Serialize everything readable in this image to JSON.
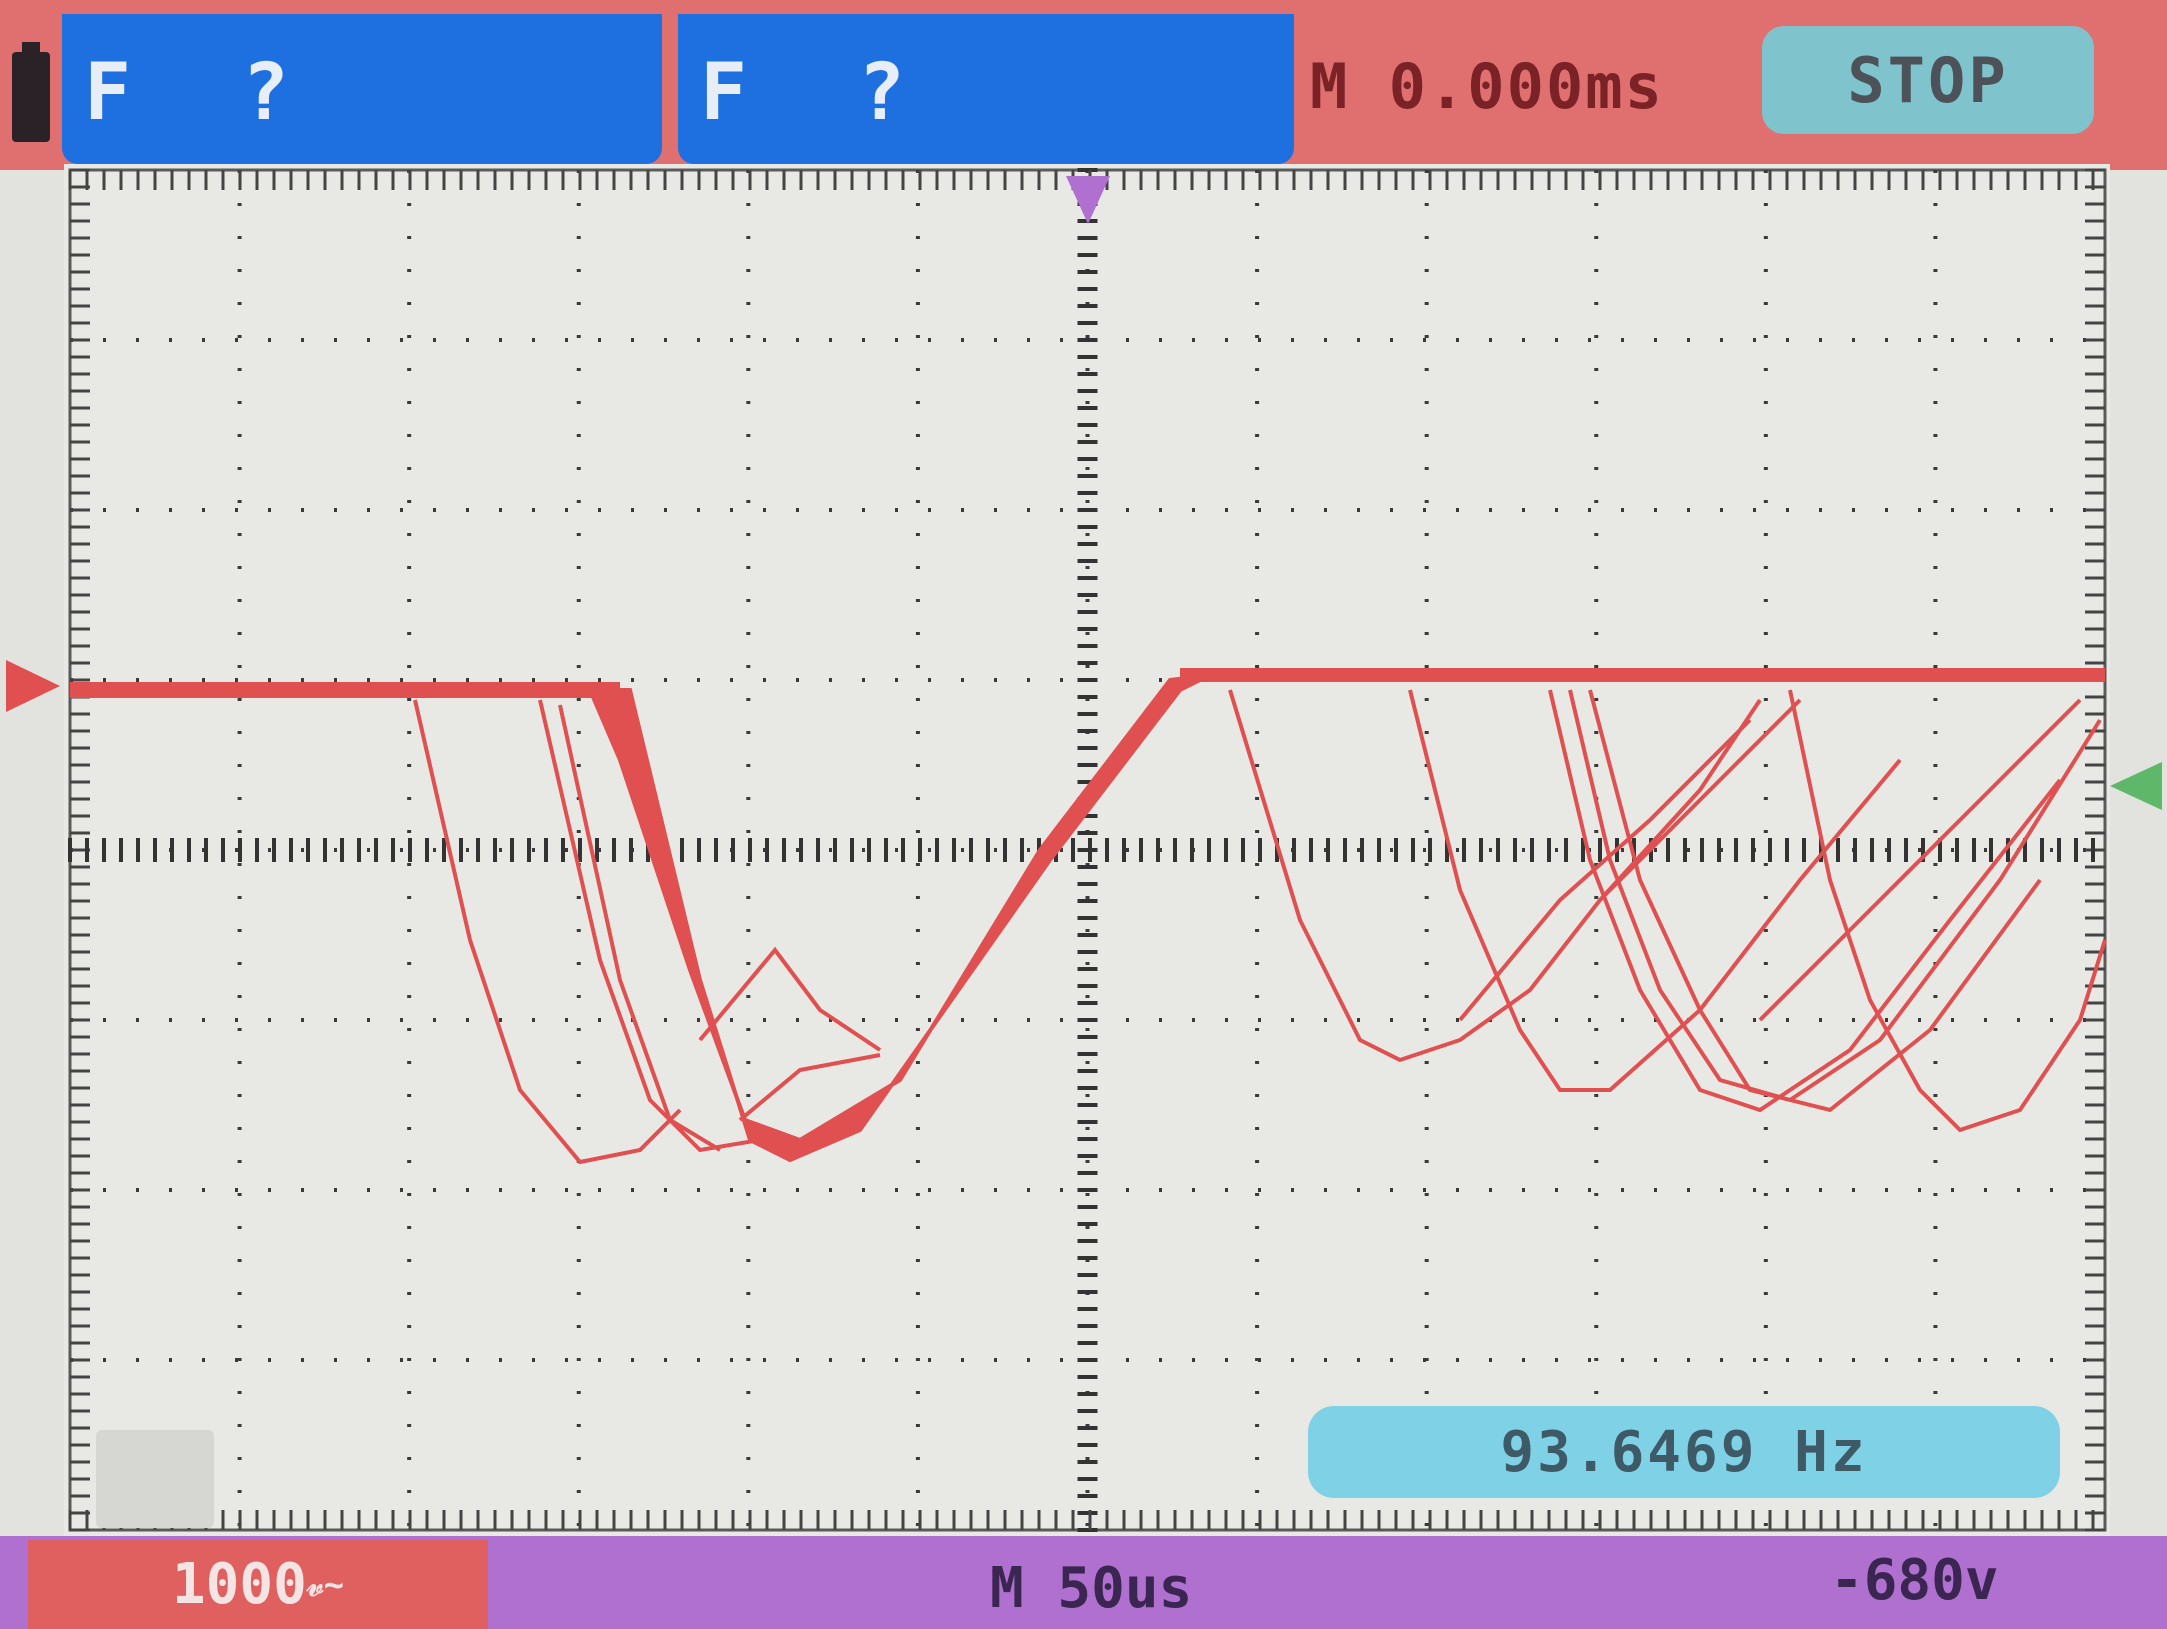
{
  "header": {
    "channel1": {
      "mode_label": "F",
      "status_label": "?"
    },
    "channel2": {
      "mode_label": "F",
      "status_label": "?"
    },
    "timebase_label": "M 0.000ms",
    "run_status_label": "STOP"
  },
  "footer": {
    "ch1_scale_label": "1000",
    "time_per_div_label": "M 50us",
    "trigger_level_label": "-680v"
  },
  "measurement": {
    "frequency_label": "93.6469 Hz"
  },
  "colors": {
    "trace": "#e05050",
    "channel_panel": "#1e6fe0",
    "header_background": "#e07070",
    "footer_background": "#b070cf",
    "stop_button": "#7fc3cc",
    "frequency_box": "#7fd2e6"
  },
  "icons": {
    "battery": "battery-icon",
    "ch1_marker": "channel-1-level-marker-icon",
    "trigger_position": "trigger-position-marker-icon",
    "trigger_level": "trigger-level-marker-icon"
  }
}
